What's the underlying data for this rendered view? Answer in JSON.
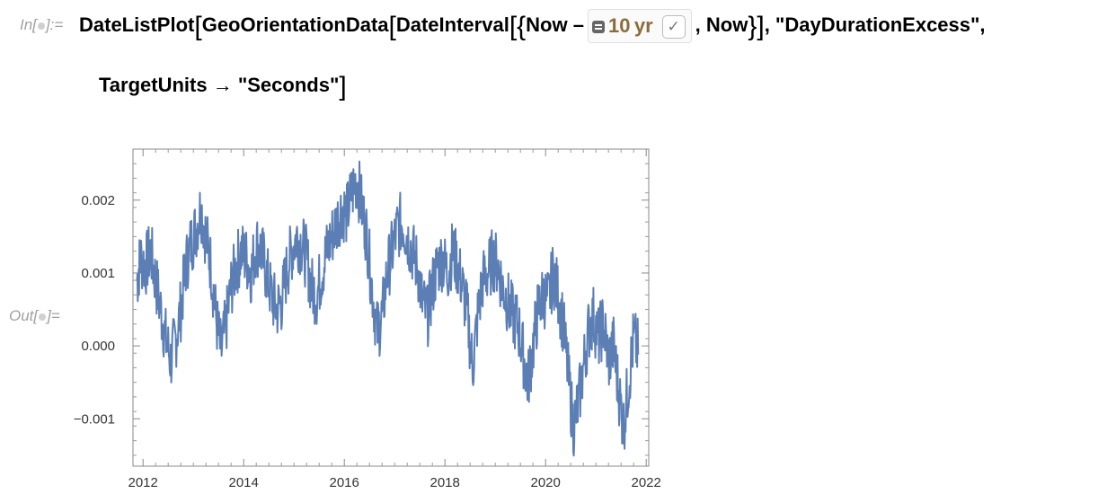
{
  "cell": {
    "in_label": "In[●]:=",
    "in_prefix": "In[",
    "in_suffix": "]:=",
    "out_prefix": "Out[",
    "out_suffix": "]=",
    "code_line1_a": "DateListPlot",
    "code_line1_b": "GeoOrientationData",
    "code_line1_c": "DateInterval",
    "code_now1": "Now",
    "code_minus": "–",
    "quantity_value": "10 yr",
    "check_glyph": "✓",
    "code_now2": ", Now",
    "code_property": ", \"DayDurationExcess\",",
    "code_line2": "TargetUnits → \"Seconds\""
  },
  "chart_data": {
    "type": "line",
    "title": "",
    "xlabel": "",
    "ylabel": "",
    "xlim": [
      2011.8,
      2022.05
    ],
    "ylim": [
      -0.00165,
      0.0027
    ],
    "x_ticks": [
      "2012",
      "2014",
      "2016",
      "2018",
      "2020",
      "2022"
    ],
    "x_tick_values": [
      2012,
      2014,
      2016,
      2018,
      2020,
      2022
    ],
    "y_ticks": [
      "−0.001",
      "0.000",
      "0.001",
      "0.002"
    ],
    "y_tick_values": [
      -0.001,
      0.0,
      0.001,
      0.002
    ],
    "grid": false,
    "line_color": "#5b7fb5",
    "series": [
      {
        "x": [
          2011.88,
          2011.95,
          2012.05,
          2012.15,
          2012.25,
          2012.35,
          2012.45,
          2012.55,
          2012.65,
          2012.75,
          2012.85,
          2012.95,
          2013.05,
          2013.15,
          2013.25,
          2013.35,
          2013.45,
          2013.55,
          2013.65,
          2013.75,
          2013.85,
          2013.95,
          2014.05,
          2014.15,
          2014.25,
          2014.35,
          2014.45,
          2014.55,
          2014.65,
          2014.75,
          2014.85,
          2014.95,
          2015.05,
          2015.15,
          2015.25,
          2015.35,
          2015.45,
          2015.55,
          2015.65,
          2015.75,
          2015.85,
          2015.95,
          2016.05,
          2016.15,
          2016.25,
          2016.35,
          2016.45,
          2016.55,
          2016.65,
          2016.75,
          2016.85,
          2016.95,
          2017.05,
          2017.15,
          2017.25,
          2017.35,
          2017.45,
          2017.55,
          2017.65,
          2017.75,
          2017.85,
          2017.95,
          2018.05,
          2018.15,
          2018.25,
          2018.35,
          2018.45,
          2018.55,
          2018.65,
          2018.75,
          2018.85,
          2018.95,
          2019.05,
          2019.15,
          2019.25,
          2019.35,
          2019.45,
          2019.55,
          2019.65,
          2019.75,
          2019.85,
          2019.95,
          2020.05,
          2020.15,
          2020.25,
          2020.35,
          2020.45,
          2020.55,
          2020.65,
          2020.75,
          2020.85,
          2020.95,
          2021.05,
          2021.15,
          2021.25,
          2021.35,
          2021.45,
          2021.55,
          2021.65,
          2021.75,
          2021.85
        ],
        "y": [
          0.0009,
          0.0012,
          0.0011,
          0.0013,
          0.0009,
          0.0005,
          0.0001,
          -0.0002,
          0.0001,
          0.0005,
          0.0011,
          0.0014,
          0.0016,
          0.0019,
          0.0015,
          0.0011,
          0.0004,
          -0.0001,
          0.0003,
          0.0008,
          0.0011,
          0.0013,
          0.0012,
          0.001,
          0.0014,
          0.0013,
          0.001,
          0.0007,
          0.0005,
          0.0006,
          0.001,
          0.0013,
          0.0015,
          0.0014,
          0.0012,
          0.0008,
          0.0007,
          0.001,
          0.0013,
          0.0015,
          0.0017,
          0.0019,
          0.0018,
          0.0021,
          0.0023,
          0.0019,
          0.0015,
          0.0008,
          0.0002,
          0.0004,
          0.001,
          0.0013,
          0.0016,
          0.0017,
          0.0015,
          0.0013,
          0.0011,
          0.0006,
          0.0004,
          0.0008,
          0.0011,
          0.0012,
          0.001,
          0.0013,
          0.0011,
          0.0008,
          0.0004,
          -0.0003,
          0.0004,
          0.0009,
          0.001,
          0.0012,
          0.0011,
          0.0008,
          0.0006,
          0.0004,
          0.0003,
          -0.0001,
          -0.0005,
          0.0,
          0.0005,
          0.0007,
          0.0006,
          0.001,
          0.0007,
          0.0003,
          -0.0004,
          -0.0011,
          -0.0008,
          -0.0003,
          0.0002,
          0.0004,
          0.0001,
          0.0003,
          -0.0002,
          0.0,
          -0.0006,
          -0.0011,
          -0.0005,
          0.0001,
          -0.0001
        ]
      }
    ]
  }
}
